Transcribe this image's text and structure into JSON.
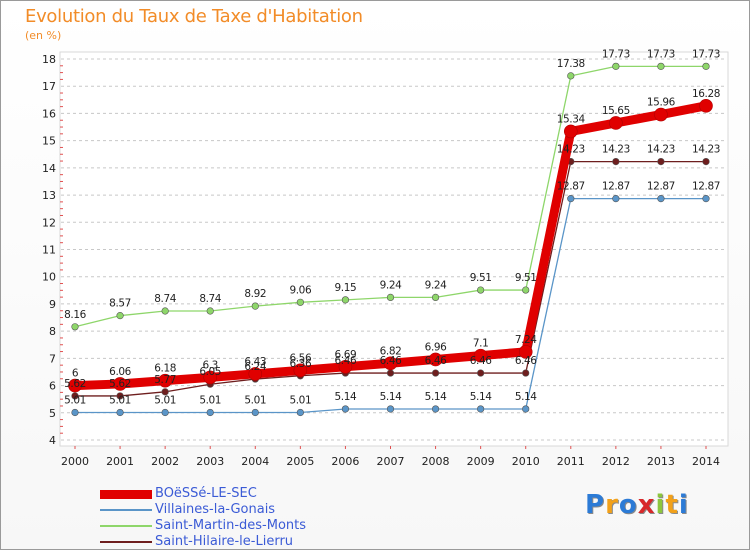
{
  "header": {
    "title": "Evolution du Taux de Taxe d'Habitation",
    "subtitle": "(en %)"
  },
  "logo": {
    "text": "Proxiti",
    "letter_colors": [
      "#2c7bd6",
      "#f2a11a",
      "#2c7bd6",
      "#d8282a",
      "#8cc63e",
      "#f2a11a",
      "#2c7bd6"
    ]
  },
  "chart_data": {
    "type": "line",
    "title": "Evolution du Taux de Taxe d'Habitation",
    "ylabel": "(en %)",
    "xlabel": "",
    "x": [
      "2000",
      "2001",
      "2002",
      "2003",
      "2004",
      "2005",
      "2006",
      "2007",
      "2008",
      "2009",
      "2010",
      "2011",
      "2012",
      "2013",
      "2014"
    ],
    "ylim": [
      4,
      18
    ],
    "yticks": [
      "4",
      "5",
      "6",
      "7",
      "8",
      "9",
      "10",
      "11",
      "12",
      "13",
      "14",
      "15",
      "16",
      "17",
      "18"
    ],
    "grid": "horizontal dashed",
    "legend_position": "bottom-left",
    "series": [
      {
        "name": "BOëSSé-LE-SEC",
        "color": "#e00000",
        "values": [
          6,
          6.06,
          6.18,
          6.3,
          6.43,
          6.56,
          6.69,
          6.82,
          6.96,
          7.1,
          7.24,
          15.34,
          15.65,
          15.96,
          16.28
        ],
        "labels": [
          "6",
          "6.06",
          "6.18",
          "6.3",
          "6.43",
          "6.56",
          "6.69",
          "6.82",
          "6.96",
          "7.1",
          "7.24",
          "15.34",
          "15.65",
          "15.96",
          "16.28"
        ]
      },
      {
        "name": "Villaines-la-Gonais",
        "color": "#5a95c8",
        "values": [
          5.01,
          5.01,
          5.01,
          5.01,
          5.01,
          5.01,
          5.14,
          5.14,
          5.14,
          5.14,
          5.14,
          12.87,
          12.87,
          12.87,
          12.87
        ],
        "labels": [
          "5.01",
          "5.01",
          "5.01",
          "5.01",
          "5.01",
          "5.01",
          "5.14",
          "5.14",
          "5.14",
          "5.14",
          "5.14",
          "12.87",
          "12.87",
          "12.87",
          "12.87"
        ]
      },
      {
        "name": "Saint-Martin-des-Monts",
        "color": "#8ed66a",
        "values": [
          8.16,
          8.57,
          8.74,
          8.74,
          8.92,
          9.06,
          9.15,
          9.24,
          9.24,
          9.51,
          9.51,
          17.38,
          17.73,
          17.73,
          17.73
        ],
        "labels": [
          "8.16",
          "8.57",
          "8.74",
          "8.74",
          "8.92",
          "9.06",
          "9.15",
          "9.24",
          "9.24",
          "9.51",
          "9.51",
          "17.38",
          "17.73",
          "17.73",
          "17.73"
        ]
      },
      {
        "name": "Saint-Hilaire-le-Lierru",
        "color": "#6e1e1e",
        "values": [
          5.62,
          5.62,
          5.77,
          6.05,
          6.24,
          6.36,
          6.46,
          6.46,
          6.46,
          6.46,
          6.46,
          14.23,
          14.23,
          14.23,
          14.23
        ],
        "labels": [
          "5.62",
          "5.62",
          "5.77",
          "6.05",
          "6.24",
          "6.36",
          "6.46",
          "6.46",
          "6.46",
          "6.46",
          "6.46",
          "14.23",
          "14.23",
          "14.23",
          "14.23"
        ]
      }
    ]
  }
}
